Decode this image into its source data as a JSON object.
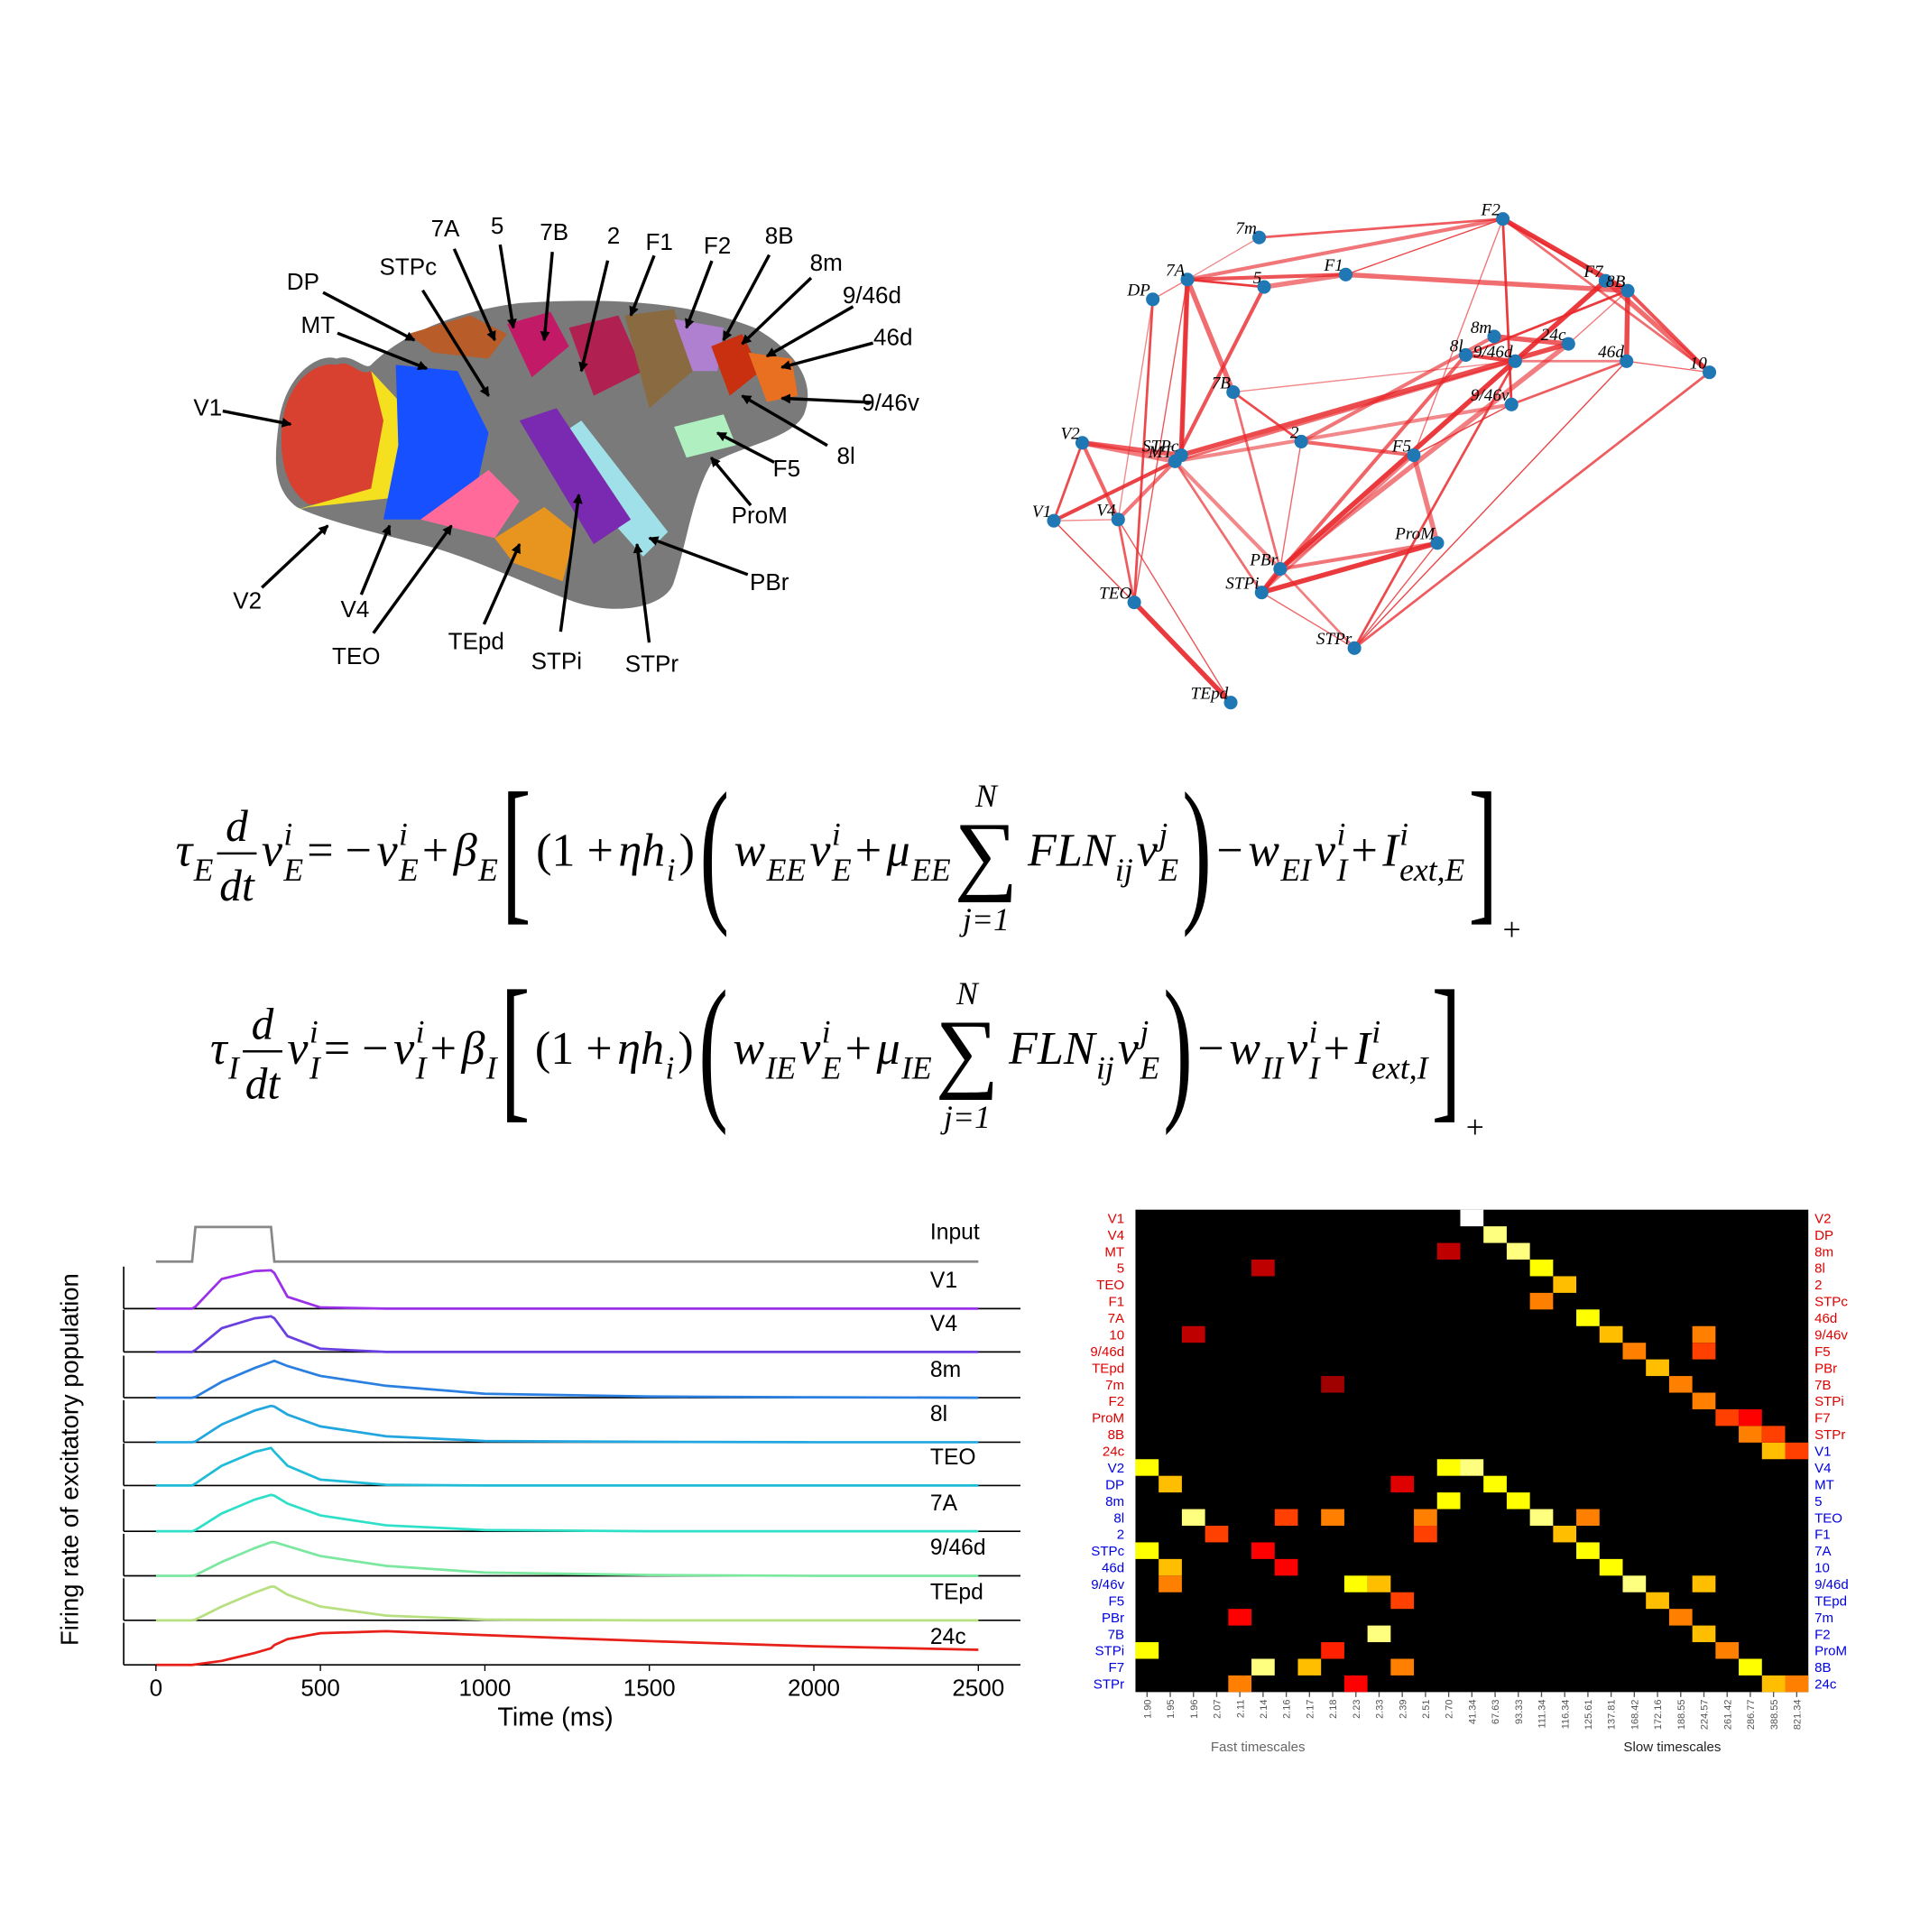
{
  "brain": {
    "labels": [
      "V1",
      "V2",
      "V4",
      "TEO",
      "TEpd",
      "STPi",
      "STPr",
      "PBr",
      "ProM",
      "F5",
      "8l",
      "9/46v",
      "46d",
      "9/46d",
      "8m",
      "8B",
      "F2",
      "F1",
      "2",
      "7B",
      "5",
      "7A",
      "STPc",
      "DP",
      "MT"
    ]
  },
  "network": {
    "nodes": [
      "F2",
      "7m",
      "F1",
      "7A",
      "5",
      "DP",
      "F7",
      "8B",
      "8m",
      "24c",
      "8l",
      "9/46d",
      "46d",
      "10",
      "7B",
      "9/46v",
      "2",
      "F5",
      "V2",
      "STPc",
      "MT",
      "V1",
      "V4",
      "ProM",
      "PBr",
      "STPi",
      "TEO",
      "STPr",
      "TEpd"
    ],
    "edges": [
      [
        21,
        22
      ],
      [
        21,
        18
      ],
      [
        18,
        22
      ],
      [
        18,
        20
      ],
      [
        21,
        26
      ],
      [
        22,
        26
      ],
      [
        22,
        20
      ],
      [
        26,
        28
      ],
      [
        22,
        28
      ],
      [
        20,
        25
      ],
      [
        20,
        24
      ],
      [
        25,
        24
      ],
      [
        25,
        27
      ],
      [
        24,
        27
      ],
      [
        20,
        19
      ],
      [
        19,
        3
      ],
      [
        5,
        3
      ],
      [
        3,
        4
      ],
      [
        3,
        2
      ],
      [
        3,
        14
      ],
      [
        5,
        22
      ],
      [
        5,
        26
      ],
      [
        3,
        19
      ],
      [
        4,
        2
      ],
      [
        2,
        0
      ],
      [
        1,
        0
      ],
      [
        3,
        0
      ],
      [
        0,
        7
      ],
      [
        0,
        6
      ],
      [
        0,
        13
      ],
      [
        6,
        7
      ],
      [
        7,
        12
      ],
      [
        12,
        13
      ],
      [
        11,
        12
      ],
      [
        11,
        10
      ],
      [
        8,
        9
      ],
      [
        9,
        7
      ],
      [
        10,
        7
      ],
      [
        7,
        13
      ],
      [
        6,
        13
      ],
      [
        14,
        11
      ],
      [
        14,
        16
      ],
      [
        16,
        17
      ],
      [
        17,
        23
      ],
      [
        17,
        15
      ],
      [
        15,
        12
      ],
      [
        23,
        24
      ],
      [
        23,
        25
      ],
      [
        27,
        23
      ],
      [
        20,
        11
      ],
      [
        20,
        15
      ],
      [
        19,
        9
      ],
      [
        16,
        24
      ],
      [
        17,
        25
      ],
      [
        21,
        20
      ],
      [
        18,
        19
      ],
      [
        0,
        17
      ],
      [
        0,
        15
      ],
      [
        4,
        20
      ],
      [
        2,
        7
      ],
      [
        1,
        3
      ],
      [
        11,
        27
      ],
      [
        10,
        25
      ],
      [
        9,
        24
      ],
      [
        12,
        27
      ],
      [
        13,
        27
      ],
      [
        8,
        16
      ],
      [
        6,
        24
      ],
      [
        3,
        26
      ],
      [
        14,
        24
      ]
    ]
  },
  "equations": [
    [
      {
        "t": "τ",
        "sub": "E"
      },
      {
        "num": "d",
        "den": "dt"
      },
      {
        "t": "ν",
        "sub": "E",
        "sup": "i"
      },
      {
        "t": " = −",
        "upright": true
      },
      {
        "t": "ν",
        "sub": "E",
        "sup": "i"
      },
      {
        "t": " + ",
        "upright": true
      },
      {
        "t": "β",
        "sub": "E"
      },
      {
        "big": "["
      },
      {
        "t": "(1 + ",
        "upright": true
      },
      {
        "t": "ηh",
        "sub": "i"
      },
      {
        "t": ")",
        "upright": true
      },
      {
        "big": "("
      },
      {
        "t": "w",
        "sub": "EE"
      },
      {
        "t": "ν",
        "sub": "E",
        "sup": "i"
      },
      {
        "t": " + ",
        "upright": true
      },
      {
        "t": "μ",
        "sub": "EE"
      },
      {
        "sum": "∑",
        "over": "N",
        "under": "j=1"
      },
      {
        "t": "FLN",
        "sub": "ij"
      },
      {
        "t": "ν",
        "sub": "E",
        "sup": "j"
      },
      {
        "big": ")"
      },
      {
        "t": " − ",
        "upright": true
      },
      {
        "t": "w",
        "sub": "EI"
      },
      {
        "t": "ν",
        "sub": "I",
        "sup": "i"
      },
      {
        "t": " + ",
        "upright": true
      },
      {
        "t": "I",
        "sub": "ext,E",
        "sup": "i"
      },
      {
        "big": "]",
        "sub": "+"
      }
    ],
    [
      {
        "t": "τ",
        "sub": "I"
      },
      {
        "num": "d",
        "den": "dt"
      },
      {
        "t": "ν",
        "sub": "I",
        "sup": "i"
      },
      {
        "t": " = −",
        "upright": true
      },
      {
        "t": "ν",
        "sub": "I",
        "sup": "i"
      },
      {
        "t": " + ",
        "upright": true
      },
      {
        "t": "β",
        "sub": "I"
      },
      {
        "big": "["
      },
      {
        "t": "(1 + ",
        "upright": true
      },
      {
        "t": "ηh",
        "sub": "i"
      },
      {
        "t": ")",
        "upright": true
      },
      {
        "big": "("
      },
      {
        "t": "w",
        "sub": "IE"
      },
      {
        "t": "ν",
        "sub": "E",
        "sup": "i"
      },
      {
        "t": " + ",
        "upright": true
      },
      {
        "t": "μ",
        "sub": "IE"
      },
      {
        "sum": "∑",
        "over": "N",
        "under": "j=1"
      },
      {
        "t": "FLN",
        "sub": "ij"
      },
      {
        "t": "ν",
        "sub": "E",
        "sup": "j"
      },
      {
        "big": ")"
      },
      {
        "t": " − ",
        "upright": true
      },
      {
        "t": "w",
        "sub": "II"
      },
      {
        "t": "ν",
        "sub": "I",
        "sup": "i"
      },
      {
        "t": " + ",
        "upright": true
      },
      {
        "t": "I",
        "sub": "ext,I",
        "sup": "i"
      },
      {
        "big": "]",
        "sub": "+"
      }
    ]
  ],
  "chart_data": [
    {
      "type": "line",
      "xlabel": "Time (ms)",
      "ylabel": "Firing rate of excitatory population",
      "x": [
        0,
        110,
        120,
        200,
        300,
        350,
        360,
        400,
        500,
        700,
        1000,
        1500,
        2000,
        2500
      ],
      "xlim": [
        -98,
        2628
      ],
      "xticks": [
        0,
        500,
        1000,
        1500,
        2000,
        2500
      ],
      "ylim": [
        0,
        1
      ],
      "series": [
        {
          "name": "Input",
          "color": "#888888",
          "values": [
            0,
            0,
            1,
            1,
            1,
            1,
            0,
            0,
            0,
            0,
            0,
            0,
            0,
            0
          ]
        },
        {
          "name": "V1",
          "color": "#9b30e8",
          "values": [
            0,
            0,
            0.05,
            0.75,
            0.95,
            0.97,
            0.9,
            0.3,
            0.03,
            0,
            0,
            0,
            0,
            0
          ]
        },
        {
          "name": "V4",
          "color": "#6a3fe0",
          "values": [
            0,
            0,
            0.05,
            0.6,
            0.85,
            0.9,
            0.85,
            0.4,
            0.08,
            0,
            0,
            0,
            0,
            0
          ]
        },
        {
          "name": "8m",
          "color": "#2a7fe0",
          "values": [
            0,
            0,
            0.02,
            0.4,
            0.75,
            0.9,
            0.93,
            0.8,
            0.55,
            0.3,
            0.1,
            0.03,
            0.01,
            0
          ]
        },
        {
          "name": "8l",
          "color": "#22a6e0",
          "values": [
            0,
            0,
            0.02,
            0.45,
            0.8,
            0.92,
            0.9,
            0.7,
            0.4,
            0.15,
            0.03,
            0.01,
            0,
            0
          ]
        },
        {
          "name": "TEO",
          "color": "#1fbcd8",
          "values": [
            0,
            0,
            0.05,
            0.5,
            0.85,
            0.95,
            0.85,
            0.5,
            0.15,
            0.02,
            0,
            0,
            0,
            0
          ]
        },
        {
          "name": "7A",
          "color": "#2ee0c8",
          "values": [
            0,
            0,
            0.03,
            0.45,
            0.8,
            0.92,
            0.9,
            0.7,
            0.4,
            0.15,
            0.03,
            0,
            0,
            0
          ]
        },
        {
          "name": "9/46d",
          "color": "#7be8a0",
          "values": [
            0,
            0,
            0.02,
            0.35,
            0.7,
            0.85,
            0.85,
            0.75,
            0.5,
            0.25,
            0.08,
            0.02,
            0,
            0
          ]
        },
        {
          "name": "TEpd",
          "color": "#b8e080",
          "values": [
            0,
            0,
            0.02,
            0.35,
            0.7,
            0.85,
            0.85,
            0.65,
            0.35,
            0.12,
            0.02,
            0,
            0,
            0
          ]
        },
        {
          "name": "24c",
          "color": "#e8201a",
          "values": [
            0,
            0,
            0.01,
            0.1,
            0.3,
            0.42,
            0.5,
            0.65,
            0.8,
            0.85,
            0.75,
            0.6,
            0.47,
            0.38
          ]
        }
      ]
    },
    {
      "type": "heatmap",
      "rows_left": [
        [
          "V1",
          "V4",
          "MT",
          "5",
          "TEO",
          "F1",
          "7A",
          "10",
          "9/46d",
          "TEpd",
          "7m",
          "F2",
          "ProM",
          "8B",
          "24c"
        ],
        [
          "V2",
          "DP",
          "8m",
          "8l",
          "2",
          "STPc",
          "46d",
          "9/46v",
          "F5",
          "PBr",
          "7B",
          "STPi",
          "F7",
          "STPr"
        ]
      ],
      "rows_right": [
        [
          "V2",
          "DP",
          "8m",
          "8l",
          "2",
          "STPc",
          "46d",
          "9/46v",
          "F5",
          "PBr",
          "7B",
          "STPi",
          "F7",
          "STPr"
        ],
        [
          "V1",
          "V4",
          "MT",
          "5",
          "TEO",
          "F1",
          "7A",
          "10",
          "9/46d",
          "TEpd",
          "7m",
          "F2",
          "ProM",
          "8B",
          "24c"
        ]
      ],
      "label_colors": [
        "#e00000",
        "#0000e0"
      ],
      "column_labels": [
        "1.90",
        "1.95",
        "1.96",
        "2.07",
        "2.11",
        "2.14",
        "2.16",
        "2.17",
        "2.18",
        "2.23",
        "2.33",
        "2.39",
        "2.51",
        "2.70",
        "41.34",
        "67.63",
        "93.33",
        "111.34",
        "116.34",
        "125.61",
        "137.81",
        "168.42",
        "172.16",
        "188.55",
        "224.57",
        "261.42",
        "286.77",
        "388.55",
        "821.34"
      ],
      "group_labels": [
        "Fast timescales",
        "Slow timescales"
      ],
      "cells": [
        [
          0,
          14,
          1
        ],
        [
          1,
          15,
          0.9
        ],
        [
          2,
          16,
          0.9
        ],
        [
          3,
          17,
          0.8
        ],
        [
          4,
          18,
          0.7
        ],
        [
          5,
          17,
          0.6
        ],
        [
          6,
          19,
          0.8
        ],
        [
          7,
          20,
          0.7
        ],
        [
          8,
          21,
          0.6
        ],
        [
          9,
          22,
          0.7
        ],
        [
          10,
          23,
          0.6
        ],
        [
          11,
          24,
          0.6
        ],
        [
          12,
          25,
          0.5
        ],
        [
          13,
          26,
          0.6
        ],
        [
          14,
          27,
          0.7
        ],
        [
          14,
          28,
          0.5
        ],
        [
          7,
          24,
          0.6
        ],
        [
          8,
          24,
          0.5
        ],
        [
          12,
          26,
          0.4
        ],
        [
          13,
          27,
          0.5
        ],
        [
          15,
          14,
          0.9
        ],
        [
          16,
          15,
          0.8
        ],
        [
          17,
          16,
          0.8
        ],
        [
          18,
          17,
          0.9
        ],
        [
          19,
          18,
          0.7
        ],
        [
          20,
          19,
          0.8
        ],
        [
          21,
          20,
          0.8
        ],
        [
          22,
          21,
          0.9
        ],
        [
          23,
          22,
          0.7
        ],
        [
          24,
          23,
          0.6
        ],
        [
          25,
          24,
          0.7
        ],
        [
          26,
          25,
          0.6
        ],
        [
          27,
          26,
          0.8
        ],
        [
          28,
          27,
          0.7
        ],
        [
          28,
          28,
          0.6
        ],
        [
          22,
          24,
          0.7
        ],
        [
          18,
          19,
          0.6
        ],
        [
          15,
          0,
          0.8
        ],
        [
          16,
          1,
          0.7
        ],
        [
          18,
          2,
          0.9
        ],
        [
          19,
          3,
          0.5
        ],
        [
          20,
          0,
          0.8
        ],
        [
          21,
          1,
          0.7
        ],
        [
          22,
          1,
          0.6
        ],
        [
          26,
          0,
          0.8
        ],
        [
          27,
          5,
          0.9
        ],
        [
          28,
          4,
          0.6
        ],
        [
          18,
          6,
          0.5
        ],
        [
          18,
          8,
          0.6
        ],
        [
          18,
          12,
          0.6
        ],
        [
          22,
          9,
          0.8
        ],
        [
          22,
          10,
          0.7
        ],
        [
          25,
          10,
          0.9
        ],
        [
          27,
          7,
          0.7
        ],
        [
          17,
          13,
          0.8
        ],
        [
          15,
          13,
          0.8
        ],
        [
          19,
          12,
          0.5
        ],
        [
          23,
          11,
          0.5
        ],
        [
          27,
          11,
          0.6
        ],
        [
          20,
          5,
          0.4
        ],
        [
          21,
          6,
          0.4
        ],
        [
          24,
          4,
          0.4
        ],
        [
          26,
          8,
          0.45
        ],
        [
          28,
          9,
          0.4
        ],
        [
          16,
          11,
          0.35
        ],
        [
          3,
          5,
          0.3
        ],
        [
          7,
          2,
          0.3
        ],
        [
          10,
          8,
          0.25
        ],
        [
          2,
          13,
          0.3
        ]
      ]
    }
  ]
}
